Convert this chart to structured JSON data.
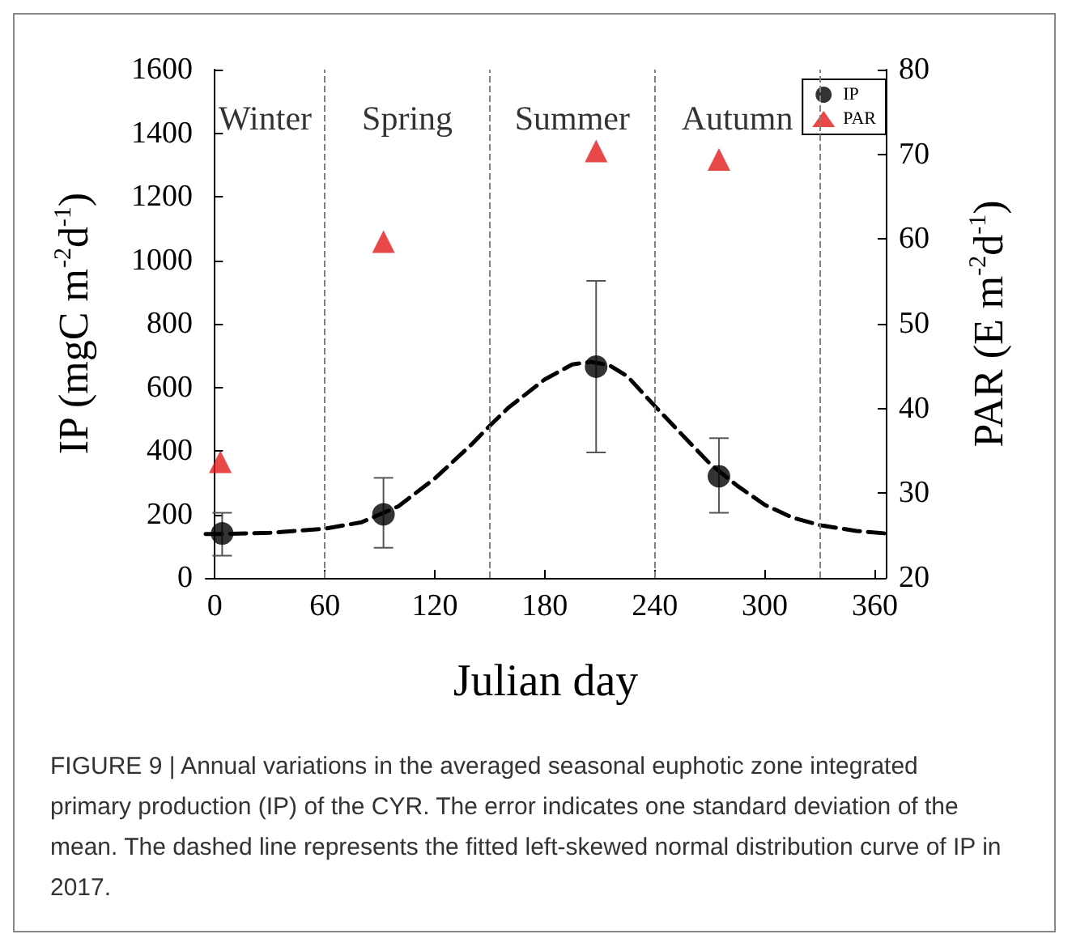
{
  "chart_data": {
    "type": "scatter",
    "xlabel": "Julian day",
    "ylabel": "IP (mgC m$^{-2}$d$^{-1}$)",
    "y2label": "PAR (E m$^{-2}$d$^{-1}$)",
    "xlim": [
      -5,
      366
    ],
    "xticks": [
      0,
      60,
      120,
      180,
      240,
      300,
      360
    ],
    "ylim": [
      0,
      1600
    ],
    "yticks": [
      0,
      200,
      400,
      600,
      800,
      1000,
      1200,
      1400,
      1600
    ],
    "y2lim": [
      20,
      80
    ],
    "y2ticks": [
      20,
      30,
      40,
      50,
      60,
      70,
      80
    ],
    "series": [
      {
        "name": "IP",
        "color": "#000000",
        "marker": "circle",
        "x": [
          4,
          92,
          208,
          275
        ],
        "values": [
          140,
          200,
          665,
          320
        ],
        "errors": [
          [
            70,
            205
          ],
          [
            95,
            315
          ],
          [
            395,
            935
          ],
          [
            205,
            440
          ]
        ]
      },
      {
        "name": "PAR",
        "axis": "y2",
        "color": "#e31a1c",
        "marker": "triangle",
        "x": [
          3,
          92,
          208,
          275
        ],
        "values": [
          33.7,
          59.7,
          70.4,
          69.4
        ]
      },
      {
        "type": "line",
        "color": "#000000",
        "marker": "none",
        "line_style": "dashed",
        "x": [
          -5,
          0,
          30,
          60,
          80,
          100,
          120,
          140,
          150,
          160,
          180,
          195,
          205,
          215,
          225,
          240,
          255,
          270,
          285,
          300,
          315,
          330,
          350,
          366
        ],
        "values": [
          138,
          138,
          142,
          155,
          175,
          225,
          313,
          420,
          479,
          535,
          625,
          672,
          680,
          670,
          635,
          541,
          450,
          360,
          290,
          230,
          190,
          166,
          148,
          140
        ]
      }
    ],
    "ref_lines": [
      {
        "axis": "x",
        "value": 60,
        "color": "#808080",
        "line_style": "dashed"
      },
      {
        "axis": "x",
        "value": 150,
        "color": "#808080",
        "line_style": "dashed"
      },
      {
        "axis": "x",
        "value": 240,
        "color": "#808080",
        "line_style": "dashed"
      },
      {
        "axis": "x",
        "value": 330,
        "color": "#808080",
        "line_style": "dashed"
      }
    ],
    "annotations": [
      "Winter",
      "Spring",
      "Summer",
      "Autumn",
      "FIGURE 9 | Annual variations in the averaged seasonal euphotic zone integrated primary production (IP) of the CYR. The error indicates one standard deviation of the mean. The dashed line represents the fitted left-skewed normal distribution curve of IP in 2017."
    ],
    "legend": "top right",
    "grid": false
  }
}
